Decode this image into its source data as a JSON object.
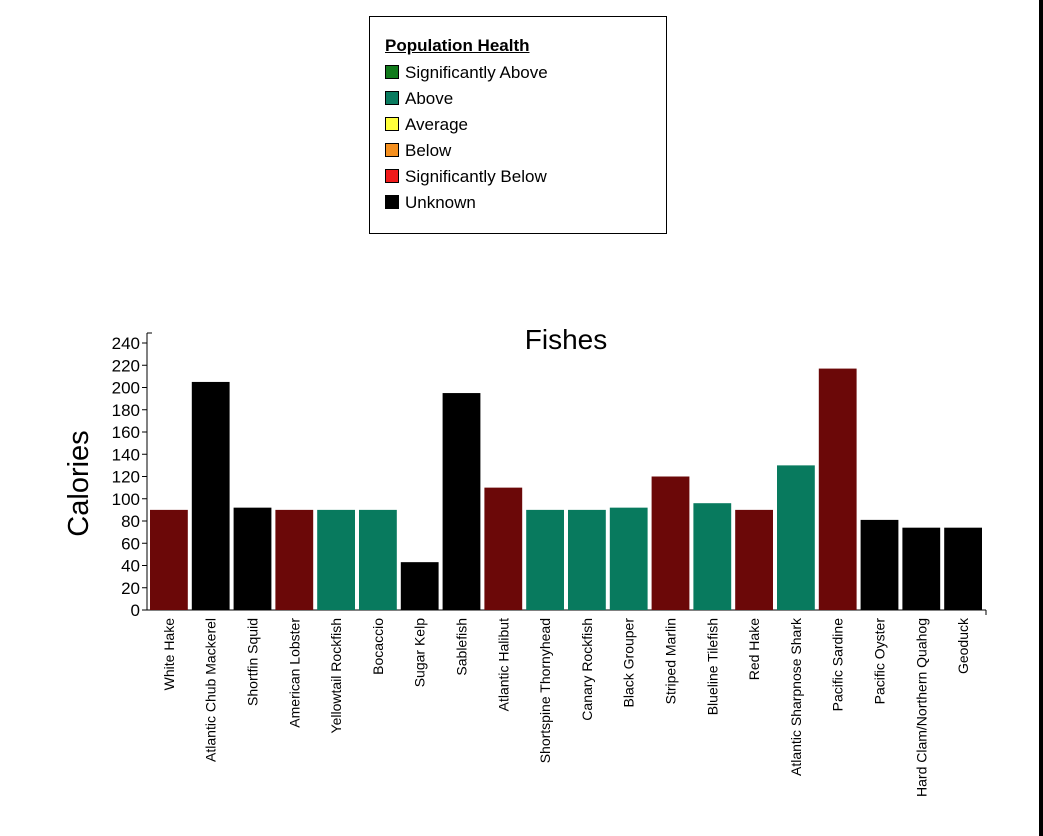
{
  "legend": {
    "title": "Population Health",
    "items": [
      {
        "label": "Significantly Above",
        "color": "#117a1c"
      },
      {
        "label": "Above",
        "color": "#0a7b5f"
      },
      {
        "label": "Average",
        "color": "#ffff3b"
      },
      {
        "label": "Below",
        "color": "#f5901f"
      },
      {
        "label": "Significantly Below",
        "color": "#f01a1a"
      },
      {
        "label": "Unknown",
        "color": "#000000"
      }
    ]
  },
  "chart_data": {
    "type": "bar",
    "title": "Fishes",
    "xlabel": "",
    "ylabel": "Calories",
    "ylim": [
      0,
      240
    ],
    "yticks": [
      0,
      20,
      40,
      60,
      80,
      100,
      120,
      140,
      160,
      180,
      200,
      220,
      240
    ],
    "categories": [
      "White Hake",
      "Atlantic Chub Mackerel",
      "Shortfin Squid",
      "American Lobster",
      "Yellowtail Rockfish",
      "Bocaccio",
      "Sugar Kelp",
      "Sablefish",
      "Atlantic Halibut",
      "Shortspine Thornyhead",
      "Canary Rockfish",
      "Black Grouper",
      "Striped Marlin",
      "Blueline Tilefish",
      "Red Hake",
      "Atlantic Sharpnose Shark",
      "Pacific Sardine",
      "Pacific Oyster",
      "Hard Clam/Northern Quahog",
      "Geoduck"
    ],
    "values": [
      90,
      205,
      92,
      90,
      90,
      90,
      43,
      195,
      110,
      90,
      90,
      92,
      120,
      96,
      90,
      130,
      217,
      81,
      74,
      74
    ],
    "bar_colors": [
      "#6b0808",
      "#000000",
      "#000000",
      "#6b0808",
      "#087a5e",
      "#087a5e",
      "#000000",
      "#000000",
      "#6b0808",
      "#087a5e",
      "#087a5e",
      "#087a5e",
      "#6b0808",
      "#087a5e",
      "#6b0808",
      "#087a5e",
      "#6b0808",
      "#000000",
      "#000000",
      "#000000"
    ],
    "grid": false,
    "legend_position": "top-center"
  }
}
